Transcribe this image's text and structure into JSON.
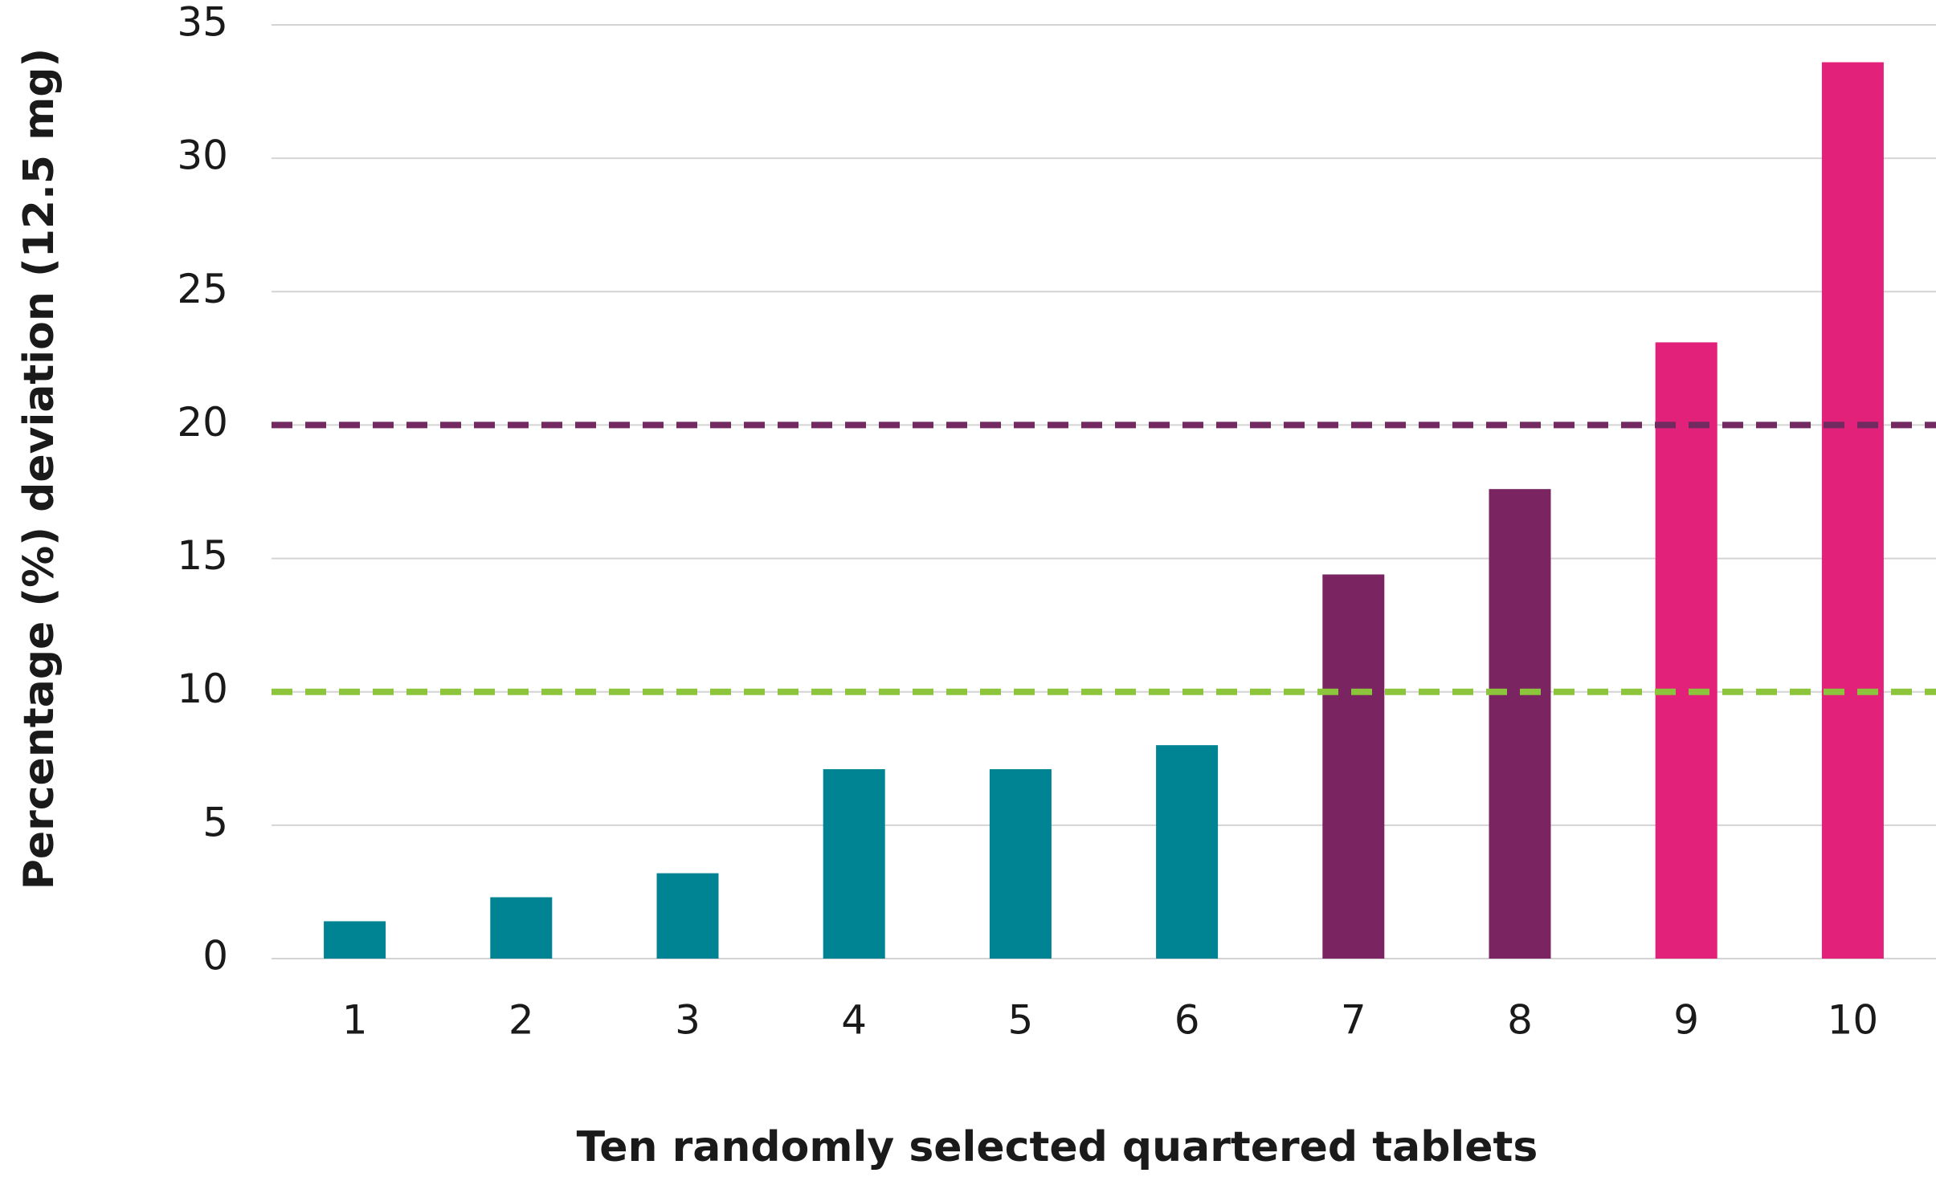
{
  "chart_data": {
    "type": "bar",
    "x_label": "Ten randomly selected quartered tablets",
    "y_label": "Percentage (%) deviation (12.5 mg)",
    "categories": [
      "1",
      "2",
      "3",
      "4",
      "5",
      "6",
      "7",
      "8",
      "9",
      "10"
    ],
    "values": [
      1.4,
      2.3,
      3.2,
      7.1,
      7.1,
      8.0,
      14.4,
      17.6,
      23.1,
      33.6
    ],
    "colors": [
      "#008393",
      "#008393",
      "#008393",
      "#008393",
      "#008393",
      "#008393",
      "#7a2562",
      "#7a2562",
      "#e2217b",
      "#e2217b"
    ],
    "ylim": [
      0,
      35
    ],
    "yticks": [
      0,
      5,
      10,
      15,
      20,
      25,
      30,
      35
    ],
    "grid": true,
    "reference_lines": [
      {
        "value": 20,
        "color": "#722a60"
      },
      {
        "value": 10,
        "color": "#8cc43c"
      }
    ]
  }
}
